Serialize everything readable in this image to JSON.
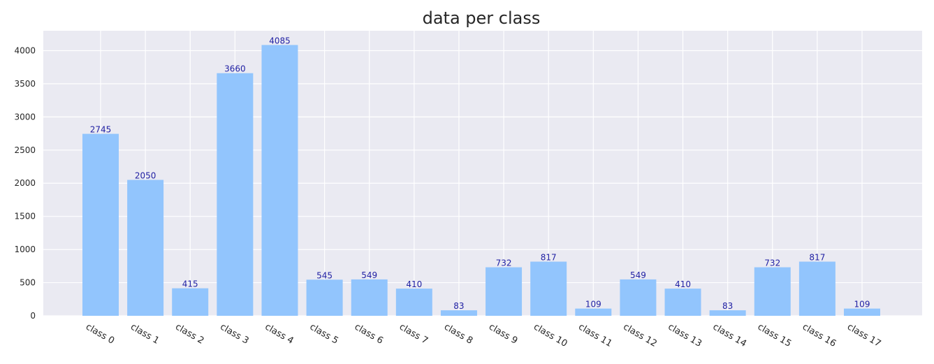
{
  "chart_data": {
    "type": "bar",
    "title": "data per class",
    "xlabel": "",
    "ylabel": "",
    "categories": [
      "class 0",
      "class 1",
      "class 2",
      "class 3",
      "class 4",
      "class 5",
      "class 6",
      "class 7",
      "class 8",
      "class 9",
      "class 10",
      "class 11",
      "class 12",
      "class 13",
      "class 14",
      "class 15",
      "class 16",
      "class 17"
    ],
    "values": [
      2745,
      2050,
      415,
      3660,
      4085,
      545,
      549,
      410,
      83,
      732,
      817,
      109,
      549,
      410,
      83,
      732,
      817,
      109
    ],
    "ylim": [
      0,
      4300
    ],
    "yticks": [
      0,
      500,
      1000,
      1500,
      2000,
      2500,
      3000,
      3500,
      4000
    ],
    "grid": true,
    "bar_color": "#92c5fd",
    "label_color": "#1f1fa3",
    "background_color": "#eaeaf2"
  }
}
